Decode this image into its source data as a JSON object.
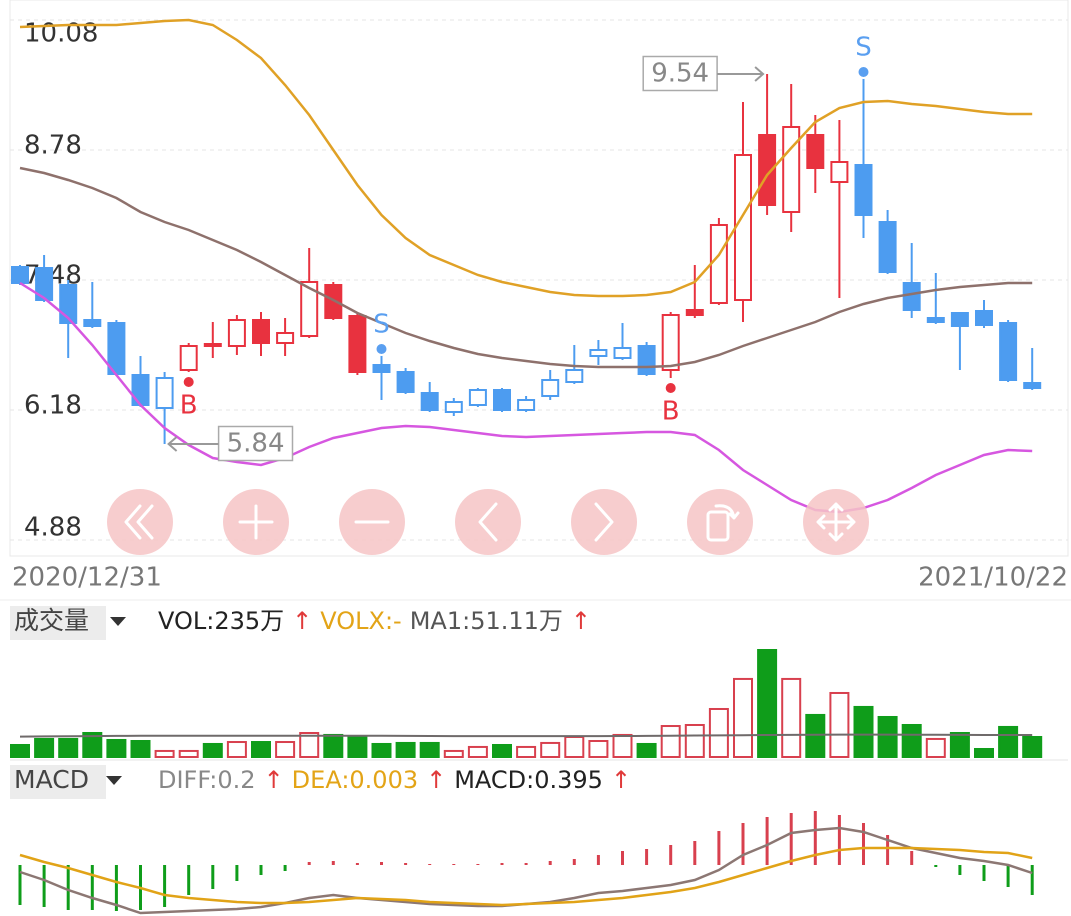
{
  "chart_data": [
    {
      "type": "candlestick",
      "date_range": [
        "2020/12/31",
        "2021/10/22"
      ],
      "ylim": [
        4.88,
        10.08
      ],
      "yticks": [
        10.08,
        8.78,
        7.48,
        6.18,
        4.88
      ],
      "grid": true,
      "open": [
        7.61,
        7.6,
        7.43,
        7.08,
        7.05,
        6.53,
        6.2,
        6.58,
        6.82,
        6.82,
        7.08,
        6.85,
        6.92,
        7.43,
        7.12,
        6.63,
        6.56,
        6.35,
        6.16,
        6.23,
        6.38,
        6.18,
        6.32,
        6.46,
        6.72,
        6.7,
        6.82,
        6.58,
        7.18,
        7.25,
        7.28,
        8.93,
        8.16,
        8.93,
        8.46,
        8.63,
        8.06,
        7.45,
        7.1,
        7.15,
        7.17,
        7.05,
        6.45
      ],
      "high": [
        7.63,
        7.73,
        7.48,
        7.46,
        7.08,
        6.72,
        6.56,
        6.85,
        7.06,
        7.13,
        7.16,
        7.1,
        7.8,
        7.46,
        7.15,
        6.73,
        6.6,
        6.46,
        6.3,
        6.4,
        6.4,
        6.32,
        6.58,
        6.83,
        6.88,
        7.05,
        6.86,
        7.16,
        7.63,
        8.1,
        9.26,
        9.54,
        9.44,
        9.13,
        9.08,
        9.5,
        8.18,
        7.85,
        7.55,
        7.15,
        7.28,
        7.08,
        6.8
      ],
      "low": [
        7.43,
        7.26,
        6.7,
        7.0,
        6.52,
        6.21,
        5.84,
        6.56,
        6.7,
        6.73,
        6.72,
        6.72,
        6.9,
        7.08,
        6.53,
        6.28,
        6.34,
        6.16,
        6.12,
        6.21,
        6.16,
        6.16,
        6.28,
        6.44,
        6.63,
        6.68,
        6.52,
        6.5,
        7.1,
        7.23,
        7.06,
        8.13,
        7.96,
        8.35,
        7.3,
        7.9,
        7.54,
        7.1,
        7.04,
        6.58,
        7.0,
        6.46,
        6.38
      ],
      "close": [
        7.45,
        7.28,
        7.05,
        7.02,
        6.54,
        6.23,
        6.5,
        6.82,
        6.84,
        7.08,
        6.85,
        6.95,
        7.46,
        7.1,
        6.56,
        6.56,
        6.36,
        6.18,
        6.26,
        6.38,
        6.18,
        6.28,
        6.48,
        6.58,
        6.78,
        6.8,
        6.54,
        7.13,
        7.13,
        8.03,
        8.73,
        8.23,
        9.01,
        8.6,
        8.66,
        8.13,
        7.56,
        7.18,
        7.06,
        7.02,
        7.03,
        6.48,
        6.4
      ],
      "colors": [
        "#4d9cf0",
        "#4d9cf0",
        "#4d9cf0",
        "#4d9cf0",
        "#4d9cf0",
        "#4d9cf0",
        "#4d9cf0",
        "#e8323f",
        "#e8323f",
        "#e8323f",
        "#e8323f",
        "#e8323f",
        "#e8323f",
        "#e8323f",
        "#e8323f",
        "#4d9cf0",
        "#4d9cf0",
        "#4d9cf0",
        "#4d9cf0",
        "#4d9cf0",
        "#4d9cf0",
        "#4d9cf0",
        "#4d9cf0",
        "#4d9cf0",
        "#4d9cf0",
        "#4d9cf0",
        "#4d9cf0",
        "#e8323f",
        "#e8323f",
        "#e8323f",
        "#e8323f",
        "#e8323f",
        "#e8323f",
        "#e8323f",
        "#e8323f",
        "#4d9cf0",
        "#4d9cf0",
        "#4d9cf0",
        "#4d9cf0",
        "#4d9cf0",
        "#4d9cf0",
        "#4d9cf0",
        "#4d9cf0"
      ],
      "hollow": [
        false,
        false,
        false,
        false,
        false,
        false,
        true,
        true,
        true,
        true,
        false,
        true,
        true,
        false,
        false,
        false,
        false,
        false,
        true,
        true,
        false,
        true,
        true,
        true,
        true,
        true,
        false,
        true,
        false,
        true,
        true,
        false,
        true,
        false,
        true,
        false,
        false,
        false,
        false,
        false,
        false,
        false,
        false
      ],
      "signals": [
        null,
        null,
        null,
        null,
        null,
        null,
        null,
        "B",
        null,
        null,
        null,
        null,
        null,
        null,
        null,
        "S",
        null,
        null,
        null,
        null,
        null,
        null,
        null,
        null,
        null,
        null,
        null,
        "B",
        null,
        null,
        null,
        null,
        null,
        null,
        null,
        "S",
        null,
        null,
        null,
        null,
        null,
        null,
        null
      ],
      "signal_colors": {
        "B": "#e8323f",
        "S": "#5a9ff0"
      },
      "lines": [
        {
          "color": "#e0a126",
          "values": [
            10.01,
            10.02,
            10.03,
            10.03,
            10.03,
            10.05,
            10.07,
            10.08,
            10.03,
            9.88,
            9.7,
            9.43,
            9.13,
            8.78,
            8.43,
            8.13,
            7.9,
            7.73,
            7.63,
            7.53,
            7.46,
            7.41,
            7.36,
            7.33,
            7.32,
            7.32,
            7.33,
            7.36,
            7.46,
            7.73,
            8.13,
            8.53,
            8.8,
            9.06,
            9.2,
            9.26,
            9.27,
            9.24,
            9.22,
            9.19,
            9.16,
            9.14,
            9.14
          ]
        },
        {
          "color": "#8e716c",
          "values": [
            8.6,
            8.55,
            8.48,
            8.4,
            8.3,
            8.16,
            8.06,
            7.98,
            7.88,
            7.78,
            7.66,
            7.53,
            7.4,
            7.28,
            7.15,
            7.05,
            6.95,
            6.87,
            6.8,
            6.74,
            6.7,
            6.67,
            6.64,
            6.62,
            6.61,
            6.61,
            6.61,
            6.62,
            6.66,
            6.73,
            6.82,
            6.9,
            6.98,
            7.06,
            7.16,
            7.24,
            7.3,
            7.34,
            7.38,
            7.41,
            7.43,
            7.45,
            7.45
          ]
        },
        {
          "color": "#d657e0",
          "values": [
            7.45,
            7.3,
            7.1,
            6.83,
            6.53,
            6.23,
            6.0,
            5.83,
            5.7,
            5.66,
            5.63,
            5.7,
            5.81,
            5.9,
            5.95,
            6.0,
            6.02,
            6.01,
            5.98,
            5.95,
            5.92,
            5.91,
            5.92,
            5.93,
            5.94,
            5.95,
            5.96,
            5.96,
            5.93,
            5.78,
            5.58,
            5.43,
            5.28,
            5.18,
            5.16,
            5.2,
            5.28,
            5.4,
            5.53,
            5.63,
            5.73,
            5.78,
            5.77
          ]
        }
      ]
    },
    {
      "type": "bar",
      "title": "成交量",
      "legend": [
        {
          "text": "VOL:235万",
          "color": "#222222"
        },
        {
          "text": "↑",
          "color": "#e03a3a"
        },
        {
          "text": "VOLX:-",
          "color": "#e3a417"
        },
        {
          "text": "MA1:51.11万",
          "color": "#555555"
        },
        {
          "text": "↑",
          "color": "#e03a3a"
        }
      ],
      "values": [
        141,
        212,
        212,
        282,
        200,
        188,
        71,
        71,
        153,
        176,
        176,
        176,
        282,
        259,
        235,
        153,
        165,
        165,
        71,
        118,
        141,
        118,
        165,
        235,
        188,
        259,
        153,
        364,
        376,
        564,
        917,
        1257,
        917,
        494,
        752,
        588,
        470,
        376,
        212,
        282,
        94,
        353,
        235
      ],
      "colors": [
        "#0f9d1a",
        "#0f9d1a",
        "#0f9d1a",
        "#0f9d1a",
        "#0f9d1a",
        "#0f9d1a",
        "#d8404e",
        "#d8404e",
        "#0f9d1a",
        "#d8404e",
        "#0f9d1a",
        "#d8404e",
        "#d8404e",
        "#0f9d1a",
        "#0f9d1a",
        "#0f9d1a",
        "#0f9d1a",
        "#0f9d1a",
        "#d8404e",
        "#d8404e",
        "#0f9d1a",
        "#d8404e",
        "#d8404e",
        "#d8404e",
        "#d8404e",
        "#d8404e",
        "#0f9d1a",
        "#d8404e",
        "#d8404e",
        "#d8404e",
        "#d8404e",
        "#0f9d1a",
        "#d8404e",
        "#0f9d1a",
        "#d8404e",
        "#0f9d1a",
        "#0f9d1a",
        "#0f9d1a",
        "#d8404e",
        "#0f9d1a",
        "#0f9d1a",
        "#0f9d1a",
        "#0f9d1a"
      ],
      "hollow": [
        false,
        false,
        false,
        false,
        false,
        false,
        true,
        true,
        false,
        true,
        false,
        true,
        true,
        false,
        false,
        false,
        false,
        false,
        true,
        true,
        false,
        true,
        true,
        true,
        true,
        true,
        false,
        true,
        true,
        true,
        true,
        false,
        true,
        false,
        true,
        false,
        false,
        false,
        true,
        false,
        false,
        false,
        false
      ],
      "lines": [
        {
          "color": "#6f6a6a",
          "values": [
            240,
            242,
            244,
            246,
            248,
            249,
            250,
            250,
            250,
            250,
            250,
            250,
            250,
            250,
            250,
            249,
            248,
            247,
            246,
            245,
            245,
            245,
            245,
            245,
            246,
            247,
            248,
            250,
            252,
            254,
            256,
            258,
            260,
            262,
            263,
            263,
            263,
            262,
            261,
            260,
            259,
            258,
            258
          ]
        }
      ]
    },
    {
      "type": "macd",
      "title": "MACD",
      "legend": [
        {
          "text": "DIFF:0.2",
          "color": "#888888"
        },
        {
          "text": "↑",
          "color": "#e03a3a"
        },
        {
          "text": "DEA:0.003",
          "color": "#e3a417"
        },
        {
          "text": "↑",
          "color": "#e03a3a"
        },
        {
          "text": "MACD:0.395",
          "color": "#222222"
        },
        {
          "text": "↑",
          "color": "#e03a3a"
        }
      ],
      "values": [
        -0.4,
        -0.42,
        -0.45,
        -0.45,
        -0.46,
        -0.45,
        -0.42,
        -0.3,
        -0.24,
        -0.16,
        -0.1,
        -0.06,
        0.03,
        0.04,
        0.02,
        0.03,
        0.02,
        0.01,
        0.01,
        0.01,
        0.02,
        0.02,
        0.04,
        0.06,
        0.1,
        0.14,
        0.16,
        0.2,
        0.24,
        0.34,
        0.42,
        0.48,
        0.52,
        0.54,
        0.5,
        0.42,
        0.3,
        0.14,
        -0.02,
        -0.1,
        -0.16,
        -0.22,
        -0.3
      ],
      "up_color": "#d8404e",
      "down_color": "#0f9d1a",
      "lines": [
        {
          "color": "#8c7773",
          "values": [
            -0.07,
            -0.15,
            -0.25,
            -0.33,
            -0.4,
            -0.48,
            -0.47,
            -0.46,
            -0.45,
            -0.44,
            -0.42,
            -0.38,
            -0.33,
            -0.3,
            -0.33,
            -0.35,
            -0.37,
            -0.39,
            -0.4,
            -0.41,
            -0.41,
            -0.39,
            -0.37,
            -0.33,
            -0.28,
            -0.26,
            -0.23,
            -0.2,
            -0.15,
            -0.05,
            0.1,
            0.2,
            0.32,
            0.35,
            0.37,
            0.33,
            0.25,
            0.17,
            0.12,
            0.07,
            0.04,
            0.0,
            -0.08
          ]
        },
        {
          "color": "#e1a317",
          "values": [
            0.1,
            0.03,
            -0.03,
            -0.1,
            -0.17,
            -0.23,
            -0.3,
            -0.33,
            -0.35,
            -0.37,
            -0.38,
            -0.38,
            -0.37,
            -0.35,
            -0.33,
            -0.34,
            -0.35,
            -0.37,
            -0.38,
            -0.39,
            -0.4,
            -0.39,
            -0.38,
            -0.37,
            -0.35,
            -0.33,
            -0.3,
            -0.27,
            -0.23,
            -0.17,
            -0.1,
            -0.03,
            0.04,
            0.1,
            0.15,
            0.17,
            0.17,
            0.17,
            0.16,
            0.15,
            0.13,
            0.12,
            0.07
          ]
        }
      ]
    }
  ]
}
